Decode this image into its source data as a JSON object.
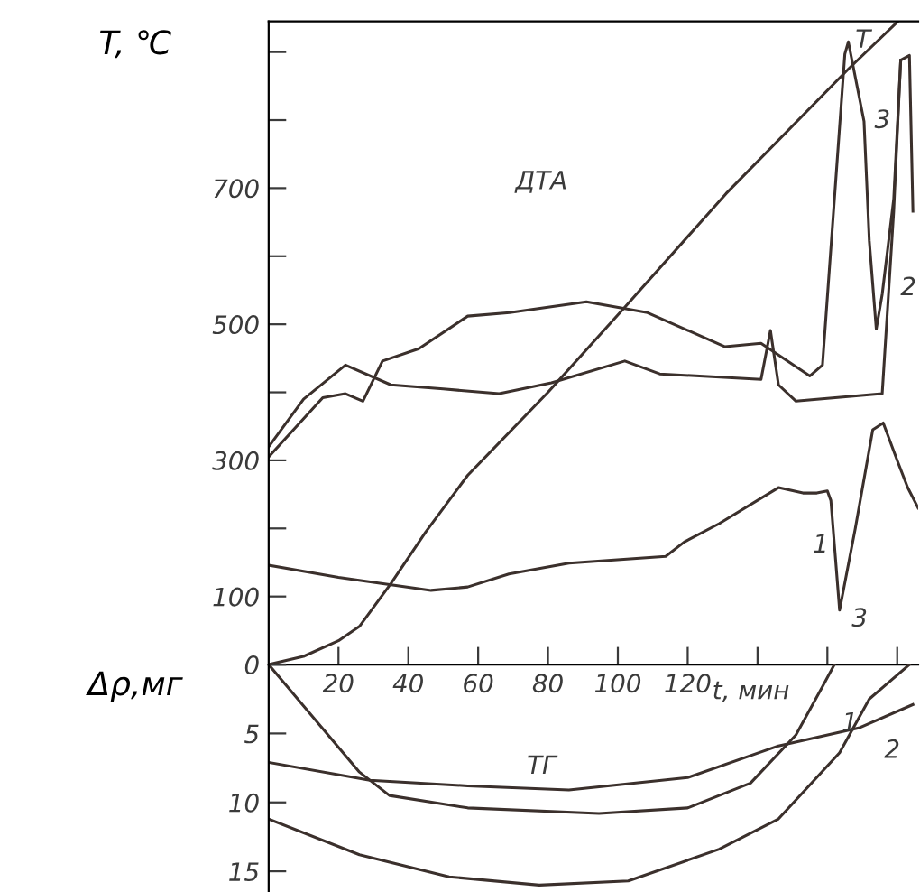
{
  "chart_data": [
    {
      "type": "line",
      "ylabel": "T, ℃",
      "xlabel": "t, мин",
      "xlim": [
        0,
        186
      ],
      "ylim": [
        0,
        945
      ],
      "xticks": [
        20,
        40,
        60,
        80,
        100,
        120,
        {
          "value": 140,
          "label": null
        },
        {
          "value": 160,
          "label": null
        },
        {
          "value": 180,
          "label": null
        }
      ],
      "yticks": [
        0,
        100,
        {
          "value": 200,
          "label": null
        },
        300,
        {
          "value": 400,
          "label": null
        },
        500,
        {
          "value": 600,
          "label": null
        },
        700,
        {
          "value": 800,
          "label": null
        },
        {
          "value": 900,
          "label": null
        }
      ],
      "series": [
        {
          "color": "#3b302c",
          "x": [
            0,
            10,
            20,
            26,
            35,
            45,
            57,
            80,
            102,
            131,
            166,
            180
          ],
          "values": [
            0,
            12,
            35,
            56,
            119,
            195,
            278,
            400,
            525,
            692,
            875,
            944
          ]
        },
        {
          "color": "#3b302c",
          "x": [
            0,
            15.5,
            22,
            27,
            32.6,
            43,
            57,
            69,
            91,
            108.5,
            130.7,
            141,
            155,
            158.6,
            165,
            166,
            170.5,
            172,
            174,
            175.7,
            179,
            181
          ],
          "values": [
            305,
            392,
            398,
            387,
            446,
            464,
            512,
            517,
            533,
            517,
            467,
            472,
            424,
            440,
            897,
            915,
            798,
            623,
            493,
            544,
            684,
            888
          ]
        },
        {
          "color": "#3b302c",
          "x": [
            0,
            10,
            22,
            35,
            50,
            66,
            81,
            102,
            112,
            141,
            143.7,
            146,
            151,
            175.7,
            179,
            181,
            183.5,
            184.5
          ],
          "values": [
            320,
            390,
            440,
            411,
            405,
            398,
            414,
            446,
            427,
            419,
            491,
            411,
            387,
            398,
            666,
            888,
            895,
            666
          ]
        },
        {
          "color": "#3b302c",
          "x": [
            0,
            20,
            46.5,
            57,
            68.8,
            86,
            113.7,
            119,
            129,
            146,
            153,
            157,
            160,
            161,
            163.5,
            168,
            173,
            176,
            180,
            183,
            186
          ],
          "values": [
            146,
            128,
            109,
            114,
            133,
            149,
            159,
            180,
            207,
            260,
            252,
            252,
            255,
            241,
            80,
            200,
            345,
            355,
            300,
            260,
            230
          ]
        }
      ],
      "annotations": [
        "ДТА",
        "T",
        "3",
        "2",
        "1",
        "3"
      ]
    },
    {
      "type": "line",
      "ylabel": "Δρ,мг",
      "xlim": [
        0,
        186
      ],
      "ylim": [
        16.5,
        0
      ],
      "tick_labels": "y",
      "yticks": [
        {
          "value": 0,
          "label": null
        },
        5,
        10,
        15
      ],
      "series": [
        {
          "color": "#3b302c",
          "x": [
            0,
            14,
            26,
            34.6,
            57,
            94.6,
            120,
            138,
            151,
            158.6,
            162
          ],
          "values": [
            0,
            4.2,
            7.8,
            9.5,
            10.4,
            10.8,
            10.4,
            8.6,
            5.1,
            1.6,
            0
          ]
        },
        {
          "color": "#3b302c",
          "x": [
            0,
            29,
            57,
            86,
            120,
            146,
            169,
            184.5
          ],
          "values": [
            7.1,
            8.4,
            8.8,
            9.1,
            8.2,
            5.9,
            4.6,
            2.9
          ]
        },
        {
          "color": "#3b302c",
          "x": [
            0,
            26,
            51.7,
            77.5,
            103,
            129,
            146,
            163.5,
            172,
            183.5
          ],
          "values": [
            11.2,
            13.8,
            15.4,
            16,
            15.7,
            13.4,
            11.2,
            6.4,
            2.5,
            0
          ]
        }
      ],
      "annotations": [
        "ТГ",
        "1",
        "2"
      ]
    }
  ]
}
